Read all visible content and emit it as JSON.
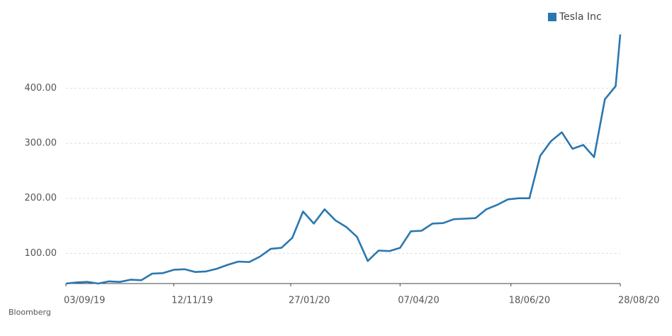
{
  "chart_data": {
    "type": "line",
    "source": "Bloomberg",
    "x": [
      "03/09/19",
      "10/09/19",
      "17/09/19",
      "24/09/19",
      "01/10/19",
      "08/10/19",
      "15/10/19",
      "22/10/19",
      "29/10/19",
      "05/11/19",
      "12/11/19",
      "19/11/19",
      "26/11/19",
      "03/12/19",
      "10/12/19",
      "17/12/19",
      "24/12/19",
      "31/12/19",
      "07/01/20",
      "14/01/20",
      "21/01/20",
      "28/01/20",
      "04/02/20",
      "11/02/20",
      "18/02/20",
      "25/02/20",
      "03/03/20",
      "10/03/20",
      "17/03/20",
      "24/03/20",
      "31/03/20",
      "07/04/20",
      "14/04/20",
      "21/04/20",
      "28/04/20",
      "05/05/20",
      "12/05/20",
      "19/05/20",
      "26/05/20",
      "02/06/20",
      "09/06/20",
      "16/06/20",
      "23/06/20",
      "30/06/20",
      "07/07/20",
      "14/07/20",
      "21/07/20",
      "28/07/20",
      "04/08/20",
      "11/08/20",
      "18/08/20",
      "25/08/20",
      "28/08/20"
    ],
    "series": [
      {
        "name": "Tesla Inc",
        "color": "#2a77b0",
        "values": [
          45,
          47,
          48,
          45,
          49,
          48,
          52,
          51,
          63,
          64,
          70,
          71,
          66,
          67,
          72,
          79,
          85,
          84,
          94,
          108,
          110,
          128,
          176,
          154,
          180,
          160,
          148,
          130,
          86,
          105,
          104,
          110,
          140,
          141,
          154,
          155,
          162,
          163,
          164,
          180,
          188,
          198,
          200,
          200,
          277,
          304,
          320,
          290,
          297,
          275,
          380,
          404,
          498
        ]
      }
    ],
    "xlim": [
      "03/09/19",
      "28/08/20"
    ],
    "xticks": [
      "03/09/19",
      "12/11/19",
      "27/01/20",
      "07/04/20",
      "18/06/20",
      "28/08/20"
    ],
    "ylim": [
      45,
      500
    ],
    "yticks": [
      {
        "value": 100,
        "label": "100.00"
      },
      {
        "value": 200,
        "label": "200.00"
      },
      {
        "value": 300,
        "label": "300.00"
      },
      {
        "value": 400,
        "label": "400.00"
      }
    ],
    "grid": true,
    "legend": "top-right"
  }
}
